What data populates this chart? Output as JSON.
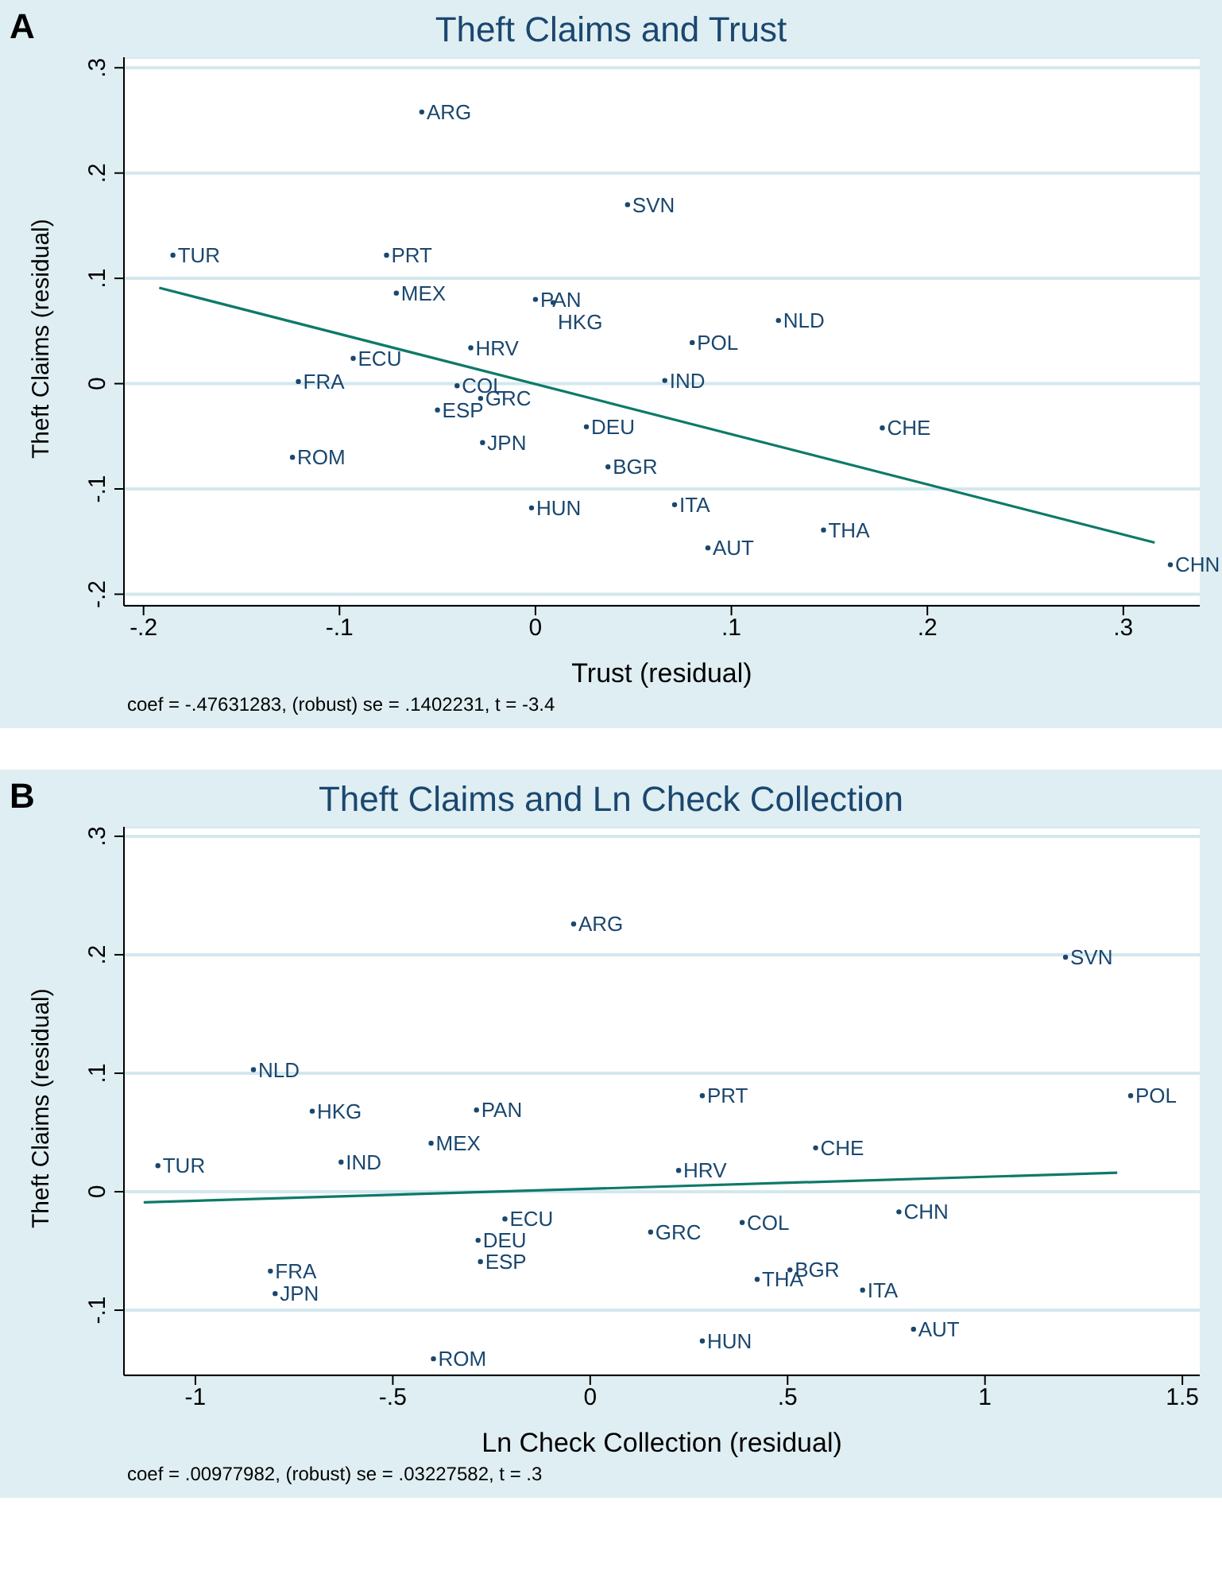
{
  "chart_data": [
    {
      "type": "scatter",
      "title": "Theft Claims and Trust",
      "xlabel": "Trust (residual)",
      "ylabel": "Theft Claims (residual)",
      "annotations": [
        "A",
        "coef = -.47631283, (robust) se = .1402231, t = -3.4"
      ],
      "grid": "y",
      "xlim": [
        -0.21,
        0.339
      ],
      "xticks": [
        {
          "value": -0.2,
          "label": "-.2"
        },
        {
          "value": -0.1,
          "label": "-.1"
        },
        0,
        {
          "value": 0.1,
          "label": ".1"
        },
        {
          "value": 0.2,
          "label": ".2"
        },
        {
          "value": 0.3,
          "label": ".3"
        }
      ],
      "ylim": [
        -0.211,
        0.31
      ],
      "yticks": [
        {
          "value": -0.2,
          "label": "-.2"
        },
        {
          "value": -0.1,
          "label": "-.1"
        },
        0,
        {
          "value": 0.1,
          "label": ".1"
        },
        {
          "value": 0.2,
          "label": ".2"
        },
        {
          "value": 0.3,
          "label": ".3"
        }
      ],
      "series": [
        {
          "type": "scatter",
          "marker": "circle",
          "color": "#1a476f",
          "x": [
            -0.058,
            0.047,
            -0.185,
            -0.076,
            -0.071,
            0.0,
            0.009,
            0.124,
            0.08,
            -0.033,
            -0.093,
            -0.121,
            0.066,
            -0.04,
            -0.028,
            -0.05,
            0.026,
            0.177,
            -0.027,
            -0.124,
            0.037,
            -0.002,
            0.071,
            0.147,
            0.088,
            0.324
          ],
          "values": [
            0.258,
            0.17,
            0.122,
            0.122,
            0.086,
            0.08,
            0.077,
            0.06,
            0.039,
            0.034,
            0.024,
            0.002,
            0.003,
            -0.002,
            -0.014,
            -0.025,
            -0.041,
            -0.042,
            -0.056,
            -0.07,
            -0.079,
            -0.118,
            -0.115,
            -0.139,
            -0.156,
            -0.172
          ],
          "value_labels": [
            "ARG",
            "SVN",
            "TUR",
            "PRT",
            "MEX",
            "PAN",
            "HKG",
            "NLD",
            "POL",
            "HRV",
            "ECU",
            "FRA",
            "IND",
            "COL",
            "GRC",
            "ESP",
            "DEU",
            "CHE",
            "JPN",
            "ROM",
            "BGR",
            "HUN",
            "ITA",
            "THA",
            "AUT",
            "CHN"
          ]
        },
        {
          "type": "line",
          "marker": "none",
          "color": "#0e7a68",
          "x": [
            -0.192,
            0.316
          ],
          "values": [
            0.091,
            -0.151
          ]
        }
      ]
    },
    {
      "type": "scatter",
      "title": "Theft Claims and Ln Check Collection",
      "xlabel": "Ln Check Collection (residual)",
      "ylabel": "Theft Claims (residual)",
      "annotations": [
        "B",
        "coef = .00977982, (robust) se = .03227582, t = .3"
      ],
      "grid": "y",
      "xlim": [
        -1.181,
        1.544
      ],
      "xticks": [
        -1,
        {
          "value": -0.5,
          "label": "-.5"
        },
        0,
        {
          "value": 0.5,
          "label": ".5"
        },
        1,
        1.5
      ],
      "ylim": [
        -0.155,
        0.308
      ],
      "yticks": [
        {
          "value": -0.1,
          "label": "-.1"
        },
        0,
        {
          "value": 0.1,
          "label": ".1"
        },
        {
          "value": 0.2,
          "label": ".2"
        },
        {
          "value": 0.3,
          "label": ".3"
        }
      ],
      "series": [
        {
          "type": "scatter",
          "marker": "circle",
          "color": "#1a476f",
          "x": [
            -0.042,
            1.204,
            -0.853,
            -0.704,
            -0.288,
            0.284,
            1.369,
            -0.403,
            0.571,
            -1.095,
            -0.631,
            0.224,
            0.782,
            -0.216,
            0.153,
            0.385,
            -0.284,
            -0.278,
            -0.81,
            0.506,
            0.423,
            0.69,
            -0.798,
            0.819,
            0.284,
            -0.397
          ],
          "values": [
            0.226,
            0.198,
            0.103,
            0.068,
            0.069,
            0.081,
            0.081,
            0.041,
            0.037,
            0.022,
            0.025,
            0.018,
            -0.017,
            -0.023,
            -0.034,
            -0.026,
            -0.041,
            -0.059,
            -0.067,
            -0.066,
            -0.074,
            -0.083,
            -0.086,
            -0.116,
            -0.126,
            -0.141
          ],
          "value_labels": [
            "ARG",
            "SVN",
            "NLD",
            "HKG",
            "PAN",
            "PRT",
            "POL",
            "MEX",
            "CHE",
            "TUR",
            "IND",
            "HRV",
            "CHN",
            "ECU",
            "GRC",
            "COL",
            "DEU",
            "ESP",
            "FRA",
            "BGR",
            "THA",
            "ITA",
            "JPN",
            "AUT",
            "HUN",
            "ROM"
          ]
        },
        {
          "type": "line",
          "marker": "none",
          "color": "#0e7a68",
          "x": [
            -1.131,
            1.335
          ],
          "values": [
            -0.009,
            0.016
          ]
        }
      ]
    }
  ]
}
